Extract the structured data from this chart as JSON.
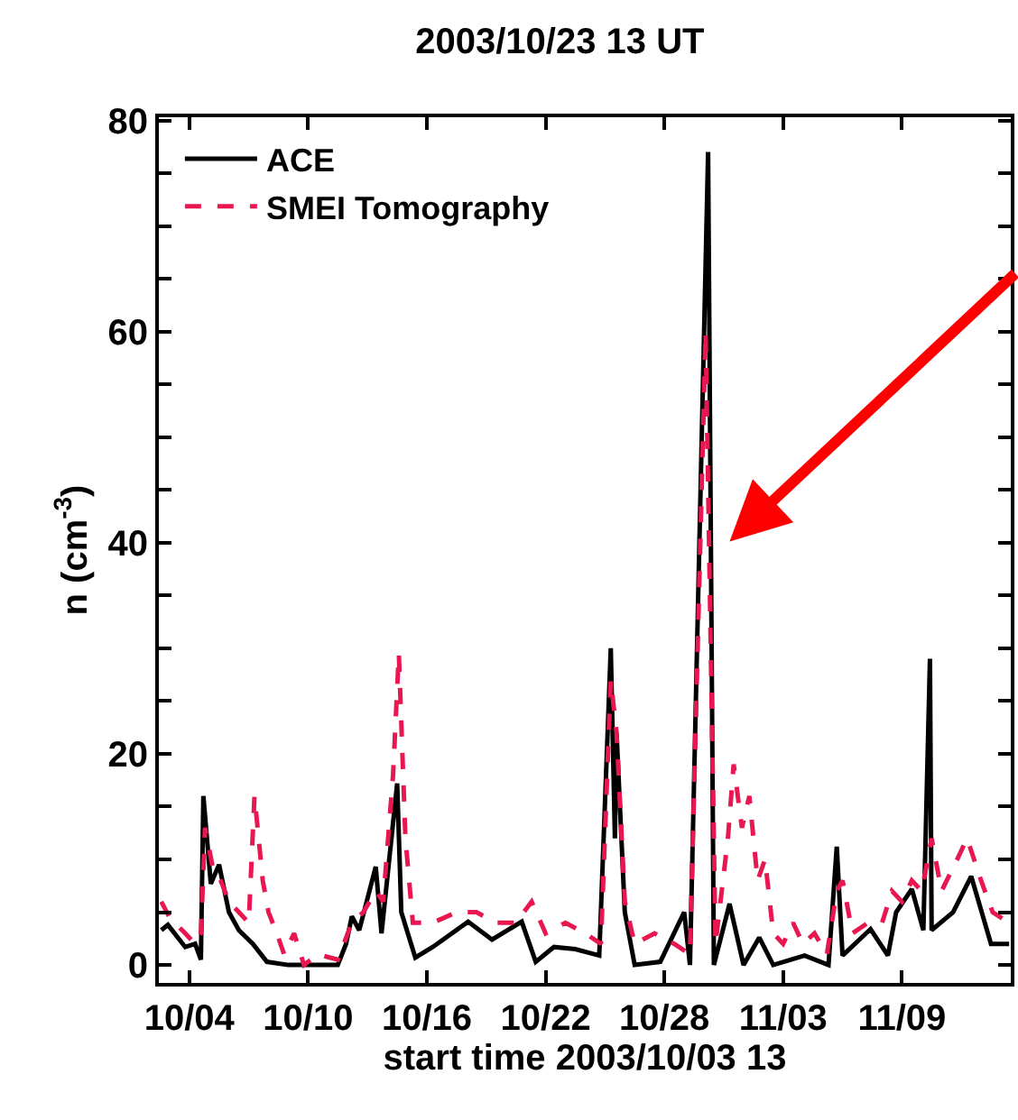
{
  "chart_data": {
    "type": "line",
    "title": "2003/10/23 13 UT",
    "xlabel": "start time 2003/10/03 13",
    "ylabel": "n (cm$^{-3}$)",
    "xlim": [
      "2003-10-02T11:00",
      "2003-11-14T12:00"
    ],
    "xticks": [
      {
        "value": "2003-10-04",
        "label": "10/04"
      },
      {
        "value": "2003-10-10",
        "label": "10/10"
      },
      {
        "value": "2003-10-16",
        "label": "10/16"
      },
      {
        "value": "2003-10-22",
        "label": "10/22"
      },
      {
        "value": "2003-10-28",
        "label": "10/28"
      },
      {
        "value": "2003-11-03",
        "label": "11/03"
      },
      {
        "value": "2003-11-09",
        "label": "11/09"
      }
    ],
    "ylim": [
      -1.7,
      80.3
    ],
    "yticks": [
      0,
      {
        "value": 5,
        "label": null
      },
      {
        "value": 10,
        "label": null
      },
      {
        "value": 15,
        "label": null
      },
      20,
      {
        "value": 25,
        "label": null
      },
      {
        "value": 30,
        "label": null
      },
      {
        "value": 35,
        "label": null
      },
      40,
      {
        "value": 45,
        "label": null
      },
      {
        "value": 50,
        "label": null
      },
      {
        "value": 55,
        "label": null
      },
      60,
      {
        "value": 65,
        "label": null
      },
      {
        "value": 70,
        "label": null
      },
      {
        "value": 75,
        "label": null
      },
      80
    ],
    "legend": "top left",
    "series": [
      {
        "name": "ACE",
        "color": "#000000",
        "line_style": "solid",
        "x": [
          "2003-10-02T14:00",
          "2003-10-02T22:00",
          "2003-10-03T19:00",
          "2003-10-04T07:00",
          "2003-10-04T14:00",
          "2003-10-04T17:00",
          "2003-10-05T02:00",
          "2003-10-05T12:00",
          "2003-10-06T00:00",
          "2003-10-06T12:00",
          "2003-10-07T05:00",
          "2003-10-07T22:00",
          "2003-10-09T00:00",
          "2003-10-11T12:00",
          "2003-10-11T22:00",
          "2003-10-12T05:00",
          "2003-10-12T14:00",
          "2003-10-13T10:00",
          "2003-10-13T17:00",
          "2003-10-14T12:00",
          "2003-10-14T17:00",
          "2003-10-15T10:00",
          "2003-10-16T07:00",
          "2003-10-18T02:00",
          "2003-10-19T07:00",
          "2003-10-20T19:00",
          "2003-10-21T12:00",
          "2003-10-22T10:00",
          "2003-10-23T12:00",
          "2003-10-24T17:00",
          "2003-10-25T07:00",
          "2003-10-25T12:00",
          "2003-10-25T14:00",
          "2003-10-26T00:00",
          "2003-10-26T12:00",
          "2003-10-27T19:00",
          "2003-10-29T00:00",
          "2003-10-29T07:00",
          "2003-10-30T05:00",
          "2003-10-30T12:00",
          "2003-10-31T07:00",
          "2003-11-01T00:00",
          "2003-11-01T19:00",
          "2003-11-02T12:00",
          "2003-11-04T02:00",
          "2003-11-05T07:00",
          "2003-11-05T17:00",
          "2003-11-06T00:00",
          "2003-11-07T10:00",
          "2003-11-08T07:00",
          "2003-11-08T17:00",
          "2003-11-09T12:00",
          "2003-11-10T02:00",
          "2003-11-10T10:00",
          "2003-11-10T12:00",
          "2003-11-11T14:00",
          "2003-11-12T12:00",
          "2003-11-13T12:00",
          "2003-11-14T10:00"
        ],
        "values": [
          3.3,
          3.8,
          1.7,
          2,
          0.5,
          16,
          7.7,
          9.5,
          5,
          3.3,
          2,
          0.3,
          0,
          0,
          2,
          4.6,
          3.3,
          9.3,
          3,
          17.2,
          5,
          0.7,
          1.7,
          4.1,
          2.4,
          4.1,
          0.3,
          1.7,
          1.5,
          0.9,
          30,
          12,
          22,
          5,
          0,
          0.3,
          5,
          0,
          77,
          0,
          5.8,
          0,
          2.6,
          0,
          0.9,
          0,
          11.2,
          0.9,
          3.4,
          0.9,
          5,
          7.2,
          3.3,
          29,
          3.3,
          5,
          8.4,
          2,
          2
        ]
      },
      {
        "name": "SMEI Tomography",
        "color": "#e8174f",
        "line_style": "dashed",
        "x": [
          "2003-10-02T14:00",
          "2003-10-03T00:00",
          "2003-10-03T19:00",
          "2003-10-04T07:00",
          "2003-10-04T14:00",
          "2003-10-04T19:00",
          "2003-10-05T05:00",
          "2003-10-05T14:00",
          "2003-10-06T00:00",
          "2003-10-06T12:00",
          "2003-10-07T00:00",
          "2003-10-07T07:00",
          "2003-10-07T17:00",
          "2003-10-08T00:00",
          "2003-10-08T10:00",
          "2003-10-08T19:00",
          "2003-10-09T07:00",
          "2003-10-09T19:00",
          "2003-10-10T12:00",
          "2003-10-11T12:00",
          "2003-10-12T05:00",
          "2003-10-12T19:00",
          "2003-10-13T10:00",
          "2003-10-13T19:00",
          "2003-10-14T07:00",
          "2003-10-14T14:00",
          "2003-10-14T22:00",
          "2003-10-15T07:00",
          "2003-10-16T07:00",
          "2003-10-17T12:00",
          "2003-10-18T12:00",
          "2003-10-19T12:00",
          "2003-10-20T12:00",
          "2003-10-21T07:00",
          "2003-10-22T00:00",
          "2003-10-23T00:00",
          "2003-10-24T00:00",
          "2003-10-24T19:00",
          "2003-10-25T07:00",
          "2003-10-25T14:00",
          "2003-10-26T00:00",
          "2003-10-26T12:00",
          "2003-10-27T12:00",
          "2003-10-28T12:00",
          "2003-10-29T07:00",
          "2003-10-30T02:00",
          "2003-10-30T14:00",
          "2003-10-31T05:00",
          "2003-10-31T12:00",
          "2003-10-31T22:00",
          "2003-11-01T07:00",
          "2003-11-01T17:00",
          "2003-11-02T02:00",
          "2003-11-02T12:00",
          "2003-11-03T00:00",
          "2003-11-03T12:00",
          "2003-11-04T00:00",
          "2003-11-04T14:00",
          "2003-11-05T05:00",
          "2003-11-05T17:00",
          "2003-11-06T00:00",
          "2003-11-06T12:00",
          "2003-11-07T07:00",
          "2003-11-08T00:00",
          "2003-11-08T12:00",
          "2003-11-09T00:00",
          "2003-11-09T12:00",
          "2003-11-10T00:00",
          "2003-11-10T12:00",
          "2003-11-11T00:00",
          "2003-11-11T19:00",
          "2003-11-12T07:00",
          "2003-11-13T00:00",
          "2003-11-13T14:00",
          "2003-11-14T10:00"
        ],
        "values": [
          6,
          4.5,
          3,
          2,
          3,
          13,
          9,
          8,
          6,
          5,
          4,
          16,
          8,
          5,
          3,
          1,
          3,
          0,
          1,
          0.5,
          4,
          5,
          7,
          6,
          18,
          29.5,
          12,
          4,
          4,
          5,
          5,
          4,
          4,
          6,
          3,
          4,
          3,
          2,
          27,
          22,
          6,
          2,
          3,
          2,
          1,
          60,
          2,
          12,
          19,
          13,
          16,
          8,
          10,
          3,
          2,
          4,
          2,
          3,
          1,
          7,
          8,
          3,
          4,
          4,
          7,
          6,
          8,
          7,
          12,
          7,
          10,
          12,
          8,
          5,
          4
        ]
      }
    ]
  }
}
